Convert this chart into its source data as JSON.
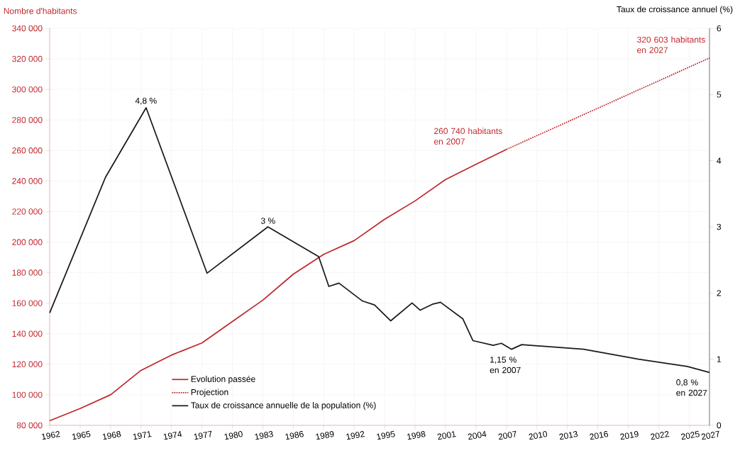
{
  "chart_data": {
    "type": "line",
    "xlabel": null,
    "ylabel": "Nombre d'habitants",
    "y2label": "Taux de croissance annuel (%)",
    "series": [
      {
        "name": "Evolution passée",
        "color": "#c0272d",
        "line_style": "solid",
        "x": [
          1962,
          1965,
          1968,
          1971,
          1974,
          1977,
          1980,
          1983,
          1986,
          1989,
          1992,
          1995,
          1998,
          2001,
          2004,
          2007
        ],
        "values": [
          83000,
          91000,
          100000,
          116000,
          126000,
          134000,
          148000,
          162000,
          179000,
          192000,
          201000,
          215000,
          227000,
          241000,
          251000,
          260740
        ]
      },
      {
        "name": "Projection",
        "color": "#c0272d",
        "line_style": "dotted",
        "x": [
          2007,
          2017,
          2027
        ],
        "values": [
          260740,
          290700,
          320603
        ]
      },
      {
        "name": "Taux de croissance annuelle de la population (%)",
        "color": "#1a1a1a",
        "line_style": "solid",
        "axis": "y2",
        "x": [
          1962,
          1967.5,
          1971.5,
          1977.5,
          1983.5,
          1988.5,
          1989.5,
          1990.5,
          1992.8,
          1994,
          1995.6,
          1997.7,
          1998.5,
          1999.7,
          2000.5,
          2002.7,
          2003.7,
          2005.7,
          2006.5,
          2007.5,
          2008.5,
          2014.6,
          2020,
          2024.8,
          2027
        ],
        "values": [
          1.7,
          3.75,
          4.8,
          2.3,
          3.0,
          2.55,
          2.1,
          2.15,
          1.88,
          1.82,
          1.58,
          1.85,
          1.74,
          1.83,
          1.86,
          1.61,
          1.28,
          1.21,
          1.24,
          1.15,
          1.22,
          1.15,
          1.0,
          0.89,
          0.8
        ]
      }
    ],
    "xlim": [
      1962,
      2027
    ],
    "xticks": [
      1962,
      1965,
      1968,
      1971,
      1974,
      1977,
      1980,
      1983,
      1986,
      1989,
      1992,
      1995,
      1998,
      2001,
      2004,
      2007,
      2010,
      2013,
      2016,
      2019,
      2022,
      2025,
      2027
    ],
    "ylim": [
      80000,
      340000
    ],
    "yticks": [
      {
        "value": 80000,
        "label": "80 000"
      },
      {
        "value": 100000,
        "label": "100 000"
      },
      {
        "value": 120000,
        "label": "120 000"
      },
      {
        "value": 140000,
        "label": "140 000"
      },
      {
        "value": 160000,
        "label": "160 000"
      },
      {
        "value": 180000,
        "label": "180 000"
      },
      {
        "value": 200000,
        "label": "200 000"
      },
      {
        "value": 220000,
        "label": "220 000"
      },
      {
        "value": 240000,
        "label": "240 000"
      },
      {
        "value": 260000,
        "label": "260 000"
      },
      {
        "value": 280000,
        "label": "280 000"
      },
      {
        "value": 300000,
        "label": "300 000"
      },
      {
        "value": 320000,
        "label": "320 000"
      },
      {
        "value": 340000,
        "label": "340 000"
      }
    ],
    "y2lim": [
      0,
      6
    ],
    "y2ticks": [
      0,
      1,
      2,
      3,
      4,
      5,
      6
    ],
    "grid": true,
    "legend": "bottom left",
    "marker": "none",
    "annotations": [
      "4,8 %",
      "3 %",
      "1,15 % en 2007",
      "0,8 % en 2027",
      {
        "text": "260 740 habitants en 2007",
        "x": 2007,
        "y": 260740
      },
      {
        "text": "320 603 habitants en 2027",
        "x": 2027,
        "y": 320603
      }
    ]
  }
}
